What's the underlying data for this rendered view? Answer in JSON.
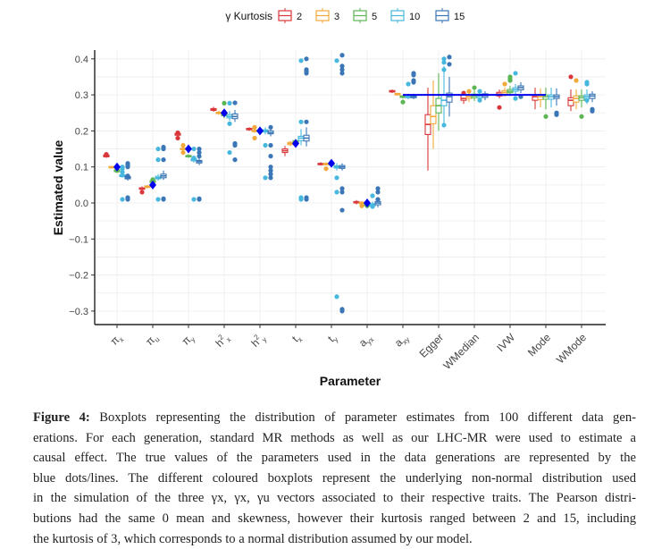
{
  "chart_data": {
    "type": "boxplot",
    "xlabel": "Parameter",
    "ylabel": "Estimated value",
    "ylim": [
      -0.33,
      0.43
    ],
    "yticks": [
      0.4,
      0.3,
      0.2,
      0.1,
      0.0,
      -0.1,
      -0.2,
      -0.3
    ],
    "ytick_labels": [
      "0.4",
      "0.3",
      "0.2",
      "0.1",
      "0.0",
      "−0.1",
      "−0.2",
      "−0.3"
    ],
    "grid": true,
    "legend": {
      "title": "γ Kurtosis",
      "placement": "top",
      "entries": [
        "2",
        "3",
        "5",
        "10",
        "15"
      ],
      "colors": [
        "#d9373a",
        "#f2a93b",
        "#5cb653",
        "#46b8de",
        "#3b76b6"
      ]
    },
    "true_value_color": "#0000ee",
    "categories": [
      {
        "label": "π",
        "sub": "x",
        "true": 0.1
      },
      {
        "label": "π",
        "sub": "u",
        "true": 0.05
      },
      {
        "label": "π",
        "sub": "y",
        "true": 0.15
      },
      {
        "label": "h",
        "sup": "2",
        "sub": "x",
        "true": 0.25
      },
      {
        "label": "h",
        "sup": "2",
        "sub": "y",
        "true": 0.2
      },
      {
        "label": "t",
        "sub": "x",
        "true": 0.165
      },
      {
        "label": "t",
        "sub": "y",
        "true": 0.11
      },
      {
        "label": "a",
        "sub": "yx",
        "true": 0.0
      },
      {
        "label": "a",
        "sub": "xy",
        "true": 0.3
      },
      {
        "label": "Egger"
      },
      {
        "label": "WMedian"
      },
      {
        "label": "IVW"
      },
      {
        "label": "Mode"
      },
      {
        "label": "WMode"
      }
    ],
    "true_line": {
      "value": 0.3,
      "from_category": 8,
      "to_category": 12
    },
    "boxes": [
      [
        [
          0.125,
          0.128,
          0.13,
          0.133,
          0.136
        ],
        [
          0.099,
          0.1,
          0.1,
          0.101,
          0.102
        ],
        [
          0.084,
          0.087,
          0.09,
          0.092,
          0.095
        ],
        [
          0.07,
          0.073,
          0.075,
          0.078,
          0.082
        ],
        [
          0.062,
          0.067,
          0.07,
          0.073,
          0.078
        ]
      ],
      [
        [
          0.035,
          0.038,
          0.04,
          0.042,
          0.046
        ],
        [
          0.04,
          0.043,
          0.045,
          0.047,
          0.05
        ],
        [
          0.052,
          0.057,
          0.06,
          0.062,
          0.067
        ],
        [
          0.062,
          0.067,
          0.07,
          0.074,
          0.08
        ],
        [
          0.064,
          0.07,
          0.075,
          0.08,
          0.09
        ]
      ],
      [
        [
          0.185,
          0.188,
          0.19,
          0.193,
          0.197
        ],
        [
          0.145,
          0.148,
          0.15,
          0.152,
          0.155
        ],
        [
          0.125,
          0.128,
          0.13,
          0.132,
          0.135
        ],
        [
          0.112,
          0.117,
          0.12,
          0.123,
          0.128
        ],
        [
          0.105,
          0.111,
          0.115,
          0.118,
          0.125
        ]
      ],
      [
        [
          0.253,
          0.257,
          0.26,
          0.262,
          0.267
        ],
        [
          0.245,
          0.248,
          0.25,
          0.252,
          0.256
        ],
        [
          0.235,
          0.242,
          0.245,
          0.248,
          0.256
        ],
        [
          0.228,
          0.236,
          0.24,
          0.245,
          0.255
        ],
        [
          0.225,
          0.234,
          0.24,
          0.247,
          0.258
        ]
      ],
      [
        [
          0.2,
          0.203,
          0.205,
          0.207,
          0.21
        ],
        [
          0.195,
          0.198,
          0.2,
          0.202,
          0.205
        ],
        [
          0.193,
          0.198,
          0.2,
          0.202,
          0.207
        ],
        [
          0.19,
          0.197,
          0.2,
          0.203,
          0.21
        ],
        [
          0.185,
          0.192,
          0.195,
          0.2,
          0.21
        ]
      ],
      [
        [
          0.13,
          0.14,
          0.145,
          0.15,
          0.158
        ],
        [
          0.158,
          0.162,
          0.165,
          0.168,
          0.172
        ],
        [
          0.163,
          0.167,
          0.17,
          0.173,
          0.178
        ],
        [
          0.16,
          0.173,
          0.18,
          0.185,
          0.205
        ],
        [
          0.157,
          0.172,
          0.18,
          0.188,
          0.21
        ]
      ],
      [
        [
          0.104,
          0.106,
          0.108,
          0.11,
          0.113
        ],
        [
          0.104,
          0.106,
          0.108,
          0.11,
          0.113
        ],
        [
          0.104,
          0.106,
          0.108,
          0.11,
          0.113
        ],
        [
          0.09,
          0.097,
          0.1,
          0.103,
          0.11
        ],
        [
          0.09,
          0.096,
          0.1,
          0.104,
          0.11
        ]
      ],
      [
        [
          -0.004,
          0.0,
          0.002,
          0.004,
          0.008
        ],
        [
          -0.006,
          -0.002,
          0.0,
          0.002,
          0.005
        ],
        [
          -0.01,
          -0.007,
          -0.005,
          -0.003,
          0.0
        ],
        [
          -0.012,
          -0.008,
          -0.005,
          -0.002,
          0.004
        ],
        [
          -0.012,
          -0.005,
          0.0,
          0.004,
          0.012
        ]
      ],
      [
        [
          0.305,
          0.308,
          0.31,
          0.312,
          0.315
        ],
        [
          0.298,
          0.3,
          0.302,
          0.304,
          0.306
        ],
        [
          0.29,
          0.293,
          0.295,
          0.297,
          0.3
        ],
        [
          0.288,
          0.292,
          0.295,
          0.298,
          0.303
        ],
        [
          0.288,
          0.292,
          0.295,
          0.298,
          0.303
        ]
      ],
      [
        [
          0.09,
          0.19,
          0.218,
          0.245,
          0.32
        ],
        [
          0.15,
          0.22,
          0.24,
          0.27,
          0.34
        ],
        [
          0.2,
          0.25,
          0.27,
          0.29,
          0.36
        ],
        [
          0.22,
          0.27,
          0.285,
          0.3,
          0.38
        ],
        [
          0.24,
          0.28,
          0.295,
          0.305,
          0.35
        ]
      ],
      [
        [
          0.275,
          0.285,
          0.29,
          0.3,
          0.31
        ],
        [
          0.28,
          0.29,
          0.295,
          0.3,
          0.31
        ],
        [
          0.283,
          0.292,
          0.297,
          0.302,
          0.312
        ],
        [
          0.283,
          0.292,
          0.297,
          0.302,
          0.312
        ],
        [
          0.285,
          0.293,
          0.298,
          0.303,
          0.31
        ]
      ],
      [
        [
          0.29,
          0.297,
          0.302,
          0.307,
          0.315
        ],
        [
          0.295,
          0.302,
          0.307,
          0.312,
          0.32
        ],
        [
          0.3,
          0.306,
          0.31,
          0.315,
          0.325
        ],
        [
          0.302,
          0.31,
          0.315,
          0.32,
          0.33
        ],
        [
          0.305,
          0.314,
          0.32,
          0.325,
          0.335
        ]
      ],
      [
        [
          0.26,
          0.285,
          0.295,
          0.3,
          0.32
        ],
        [
          0.265,
          0.287,
          0.295,
          0.3,
          0.318
        ],
        [
          0.26,
          0.288,
          0.295,
          0.3,
          0.32
        ],
        [
          0.265,
          0.288,
          0.295,
          0.3,
          0.32
        ],
        [
          0.27,
          0.29,
          0.295,
          0.3,
          0.318
        ]
      ],
      [
        [
          0.255,
          0.27,
          0.285,
          0.292,
          0.315
        ],
        [
          0.26,
          0.28,
          0.29,
          0.297,
          0.315
        ],
        [
          0.265,
          0.285,
          0.292,
          0.297,
          0.315
        ],
        [
          0.275,
          0.29,
          0.295,
          0.3,
          0.315
        ],
        [
          0.28,
          0.29,
          0.297,
          0.302,
          0.31
        ]
      ]
    ],
    "outliers": [
      [
        [
          0.135
        ],
        [],
        [
          0.09
        ],
        [
          0.01,
          0.1,
          0.095,
          0.085
        ],
        [
          0.11,
          0.105,
          0.1,
          0.015,
          0.01,
          0.075
        ]
      ],
      [
        [
          0.03
        ],
        [],
        [
          0.065
        ],
        [
          0.15,
          0.12,
          0.01
        ],
        [
          0.15,
          0.155,
          0.12,
          0.012,
          0.01
        ]
      ],
      [
        [
          0.195,
          0.18
        ],
        [
          0.16,
          0.14
        ],
        [],
        [
          0.15,
          0.125,
          0.01
        ],
        [
          0.15,
          0.14,
          0.13,
          0.01,
          0.012
        ]
      ],
      [
        [],
        [],
        [
          0.277
        ],
        [
          0.277,
          0.22,
          0.14
        ],
        [
          0.278,
          0.165,
          0.16,
          0.12
        ]
      ],
      [
        [],
        [
          0.21,
          0.18
        ],
        [],
        [
          0.16,
          0.07
        ],
        [
          0.21,
          0.16,
          0.13,
          0.1,
          0.09,
          0.08,
          0.07
        ]
      ],
      [
        [],
        [],
        [],
        [
          0.395,
          0.225,
          0.015,
          0.01
        ],
        [
          0.4,
          0.37,
          0.365,
          0.36,
          0.225,
          0.01,
          0.015
        ]
      ],
      [
        [],
        [
          0.095
        ],
        [],
        [
          0.395,
          0.07,
          0.03,
          -0.26
        ],
        [
          0.41,
          0.38,
          0.37,
          0.36,
          0.04,
          0.03,
          -0.02,
          -0.295,
          -0.3
        ]
      ],
      [
        [],
        [
          -0.008
        ],
        [
          -0.008
        ],
        [
          -0.01,
          0.02
        ],
        [
          0.04,
          0.03,
          0.01
        ]
      ],
      [
        [],
        [],
        [
          0.28
        ],
        [
          0.33
        ],
        [
          0.36,
          0.355,
          0.34,
          0.335
        ]
      ],
      [
        [],
        [],
        [],
        [
          0.4,
          0.39,
          0.37,
          0.216
        ],
        [
          0.405,
          0.385
        ]
      ],
      [
        [
          0.305
        ],
        [
          0.31
        ],
        [
          0.32
        ],
        [
          0.31,
          0.285
        ],
        []
      ],
      [
        [
          0.265
        ],
        [
          0.33
        ],
        [
          0.35,
          0.345,
          0.34
        ],
        [
          0.36,
          0.29
        ],
        [
          0.295
        ]
      ],
      [
        [],
        [],
        [
          0.24
        ],
        [],
        [
          0.25,
          0.245
        ]
      ],
      [
        [
          0.35
        ],
        [
          0.34
        ],
        [
          0.24
        ],
        [
          0.335,
          0.33,
          0.285
        ],
        [
          0.26,
          0.255
        ]
      ]
    ]
  },
  "caption": {
    "figure_label": "Figure 4:",
    "lines": [
      "Boxplots representing the distribution of parameter estimates from 100 different data gen-",
      "erations. For each generation, standard MR methods as well as our LHC-MR were used to estimate a",
      "causal effect. The true values of the parameters used in the data generations are represented by the",
      "blue dots/lines. The different coloured boxplots represent the underlying non-normal distribution used",
      "in the simulation of the three γx, γx, γu vectors associated to their respective traits. The Pearson distri-",
      "butions had the same 0 mean and skewness, however their kurtosis ranged between 2 and 15, including",
      "the kurtosis of 3, which corresponds to a normal distribution assumed by our model."
    ]
  }
}
